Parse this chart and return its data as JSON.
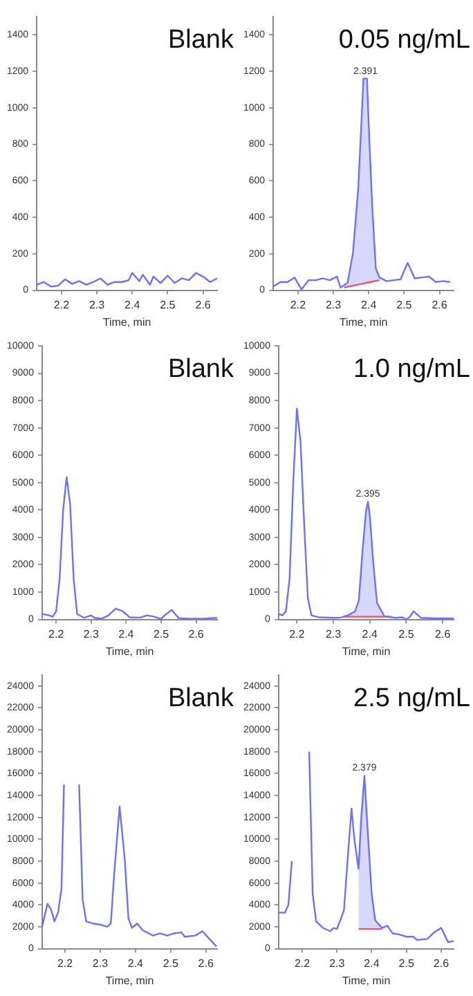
{
  "chart_data": [
    {
      "type": "line",
      "title": "Blank",
      "xlabel": "Time, min",
      "xlim": [
        2.13,
        2.64
      ],
      "xticks": [
        2.2,
        2.3,
        2.4,
        2.5,
        2.6
      ],
      "ylim": [
        0,
        1500
      ],
      "yticks": [
        0,
        200,
        400,
        600,
        800,
        1000,
        1200,
        1400
      ],
      "grid": false,
      "legend": false,
      "marker": "none",
      "series": [
        {
          "color": "#6f6fff",
          "x": [
            2.13,
            2.15,
            2.17,
            2.19,
            2.21,
            2.23,
            2.25,
            2.27,
            2.29,
            2.31,
            2.33,
            2.35,
            2.37,
            2.39,
            2.4,
            2.42,
            2.43,
            2.45,
            2.46,
            2.48,
            2.5,
            2.52,
            2.54,
            2.56,
            2.58,
            2.6,
            2.62,
            2.64
          ],
          "values": [
            30,
            45,
            20,
            25,
            60,
            35,
            50,
            30,
            45,
            65,
            30,
            45,
            45,
            55,
            95,
            50,
            85,
            30,
            75,
            40,
            80,
            40,
            65,
            55,
            95,
            75,
            45,
            65
          ]
        }
      ]
    },
    {
      "type": "line",
      "title": "0.05 ng/mL",
      "xlabel": "Time, min",
      "xlim": [
        2.13,
        2.64
      ],
      "xticks": [
        2.2,
        2.3,
        2.4,
        2.5,
        2.6
      ],
      "ylim": [
        0,
        1500
      ],
      "yticks": [
        0,
        200,
        400,
        600,
        800,
        1000,
        1200,
        1400
      ],
      "grid": false,
      "legend": false,
      "marker": "none",
      "annotations": [
        {
          "text": "2.391",
          "x": 2.391,
          "y": 1160
        }
      ],
      "series": [
        {
          "color": "#6f6fff",
          "x": [
            2.13,
            2.15,
            2.17,
            2.19,
            2.21,
            2.23,
            2.25,
            2.27,
            2.29,
            2.31,
            2.32,
            2.34,
            2.355,
            2.37,
            2.38,
            2.385,
            2.395,
            2.4,
            2.41,
            2.42,
            2.43,
            2.45,
            2.47,
            2.49,
            2.51,
            2.53,
            2.55,
            2.57,
            2.59,
            2.61,
            2.63
          ],
          "values": [
            20,
            45,
            45,
            70,
            5,
            55,
            55,
            65,
            55,
            75,
            15,
            40,
            200,
            550,
            950,
            1160,
            1160,
            900,
            450,
            120,
            70,
            50,
            55,
            60,
            150,
            65,
            70,
            75,
            45,
            50,
            45
          ]
        },
        {
          "color": "#ff5050",
          "x": [
            2.33,
            2.34,
            2.355,
            2.37,
            2.38,
            2.385,
            2.395,
            2.4,
            2.41,
            2.42,
            2.43
          ],
          "values": [
            15,
            19,
            25,
            31,
            35,
            37,
            41,
            43,
            47,
            51,
            55
          ],
          "lower": [
            15,
            19,
            25,
            31,
            35,
            37,
            41,
            43,
            47,
            51,
            55
          ],
          "upper": [
            20,
            40,
            200,
            550,
            950,
            1160,
            1160,
            900,
            450,
            120,
            70
          ]
        }
      ]
    },
    {
      "type": "line",
      "title": "Blank",
      "xlabel": "Time, min",
      "xlim": [
        2.16,
        2.66
      ],
      "xticks": [
        2.2,
        2.3,
        2.4,
        2.5,
        2.6
      ],
      "ylim": [
        0,
        10000
      ],
      "yticks": [
        0,
        1000,
        2000,
        3000,
        4000,
        5000,
        6000,
        7000,
        8000,
        9000,
        10000
      ],
      "grid": false,
      "legend": false,
      "marker": "none",
      "series": [
        {
          "color": "#6f6fff",
          "x": [
            2.16,
            2.18,
            2.19,
            2.2,
            2.21,
            2.22,
            2.23,
            2.24,
            2.25,
            2.26,
            2.28,
            2.3,
            2.31,
            2.33,
            2.35,
            2.37,
            2.39,
            2.41,
            2.44,
            2.46,
            2.48,
            2.5,
            2.51,
            2.53,
            2.55,
            2.58,
            2.62,
            2.66
          ],
          "values": [
            200,
            150,
            100,
            300,
            1500,
            4000,
            5200,
            4200,
            1500,
            200,
            60,
            150,
            60,
            30,
            150,
            400,
            300,
            80,
            70,
            150,
            100,
            20,
            150,
            350,
            50,
            30,
            30,
            60
          ]
        }
      ]
    },
    {
      "type": "line",
      "title": "1.0 ng/mL",
      "xlabel": "Time, min",
      "xlim": [
        2.15,
        2.63
      ],
      "xticks": [
        2.2,
        2.3,
        2.4,
        2.5,
        2.6
      ],
      "ylim": [
        0,
        10000
      ],
      "yticks": [
        0,
        1000,
        2000,
        3000,
        4000,
        5000,
        6000,
        7000,
        8000,
        9000,
        10000
      ],
      "grid": false,
      "legend": false,
      "marker": "none",
      "annotations": [
        {
          "text": "2.395",
          "x": 2.395,
          "y": 4300
        }
      ],
      "series": [
        {
          "color": "#6f6fff",
          "x": [
            2.15,
            2.16,
            2.17,
            2.18,
            2.19,
            2.2,
            2.21,
            2.22,
            2.23,
            2.24,
            2.26,
            2.3,
            2.32,
            2.34,
            2.36,
            2.37,
            2.38,
            2.39,
            2.395,
            2.4,
            2.41,
            2.42,
            2.44,
            2.47,
            2.49,
            2.5,
            2.51,
            2.52,
            2.54,
            2.58,
            2.63
          ],
          "values": [
            200,
            150,
            300,
            1500,
            5000,
            7700,
            6500,
            3500,
            800,
            150,
            80,
            60,
            70,
            150,
            300,
            700,
            2500,
            4000,
            4300,
            3800,
            2000,
            600,
            120,
            60,
            80,
            0,
            100,
            300,
            60,
            40,
            40
          ]
        },
        {
          "color": "#ff5050",
          "x": [
            2.33,
            2.34,
            2.36,
            2.37,
            2.38,
            2.39,
            2.395,
            2.4,
            2.41,
            2.42,
            2.44,
            2.46
          ],
          "values": [
            100,
            100,
            100,
            100,
            100,
            100,
            100,
            100,
            100,
            100,
            100,
            100
          ],
          "lower": [
            100,
            100,
            100,
            100,
            100,
            100,
            100,
            100,
            100,
            100,
            100,
            100
          ],
          "upper": [
            100,
            150,
            300,
            700,
            2500,
            4000,
            4300,
            3800,
            2000,
            600,
            120,
            100
          ]
        }
      ]
    },
    {
      "type": "line",
      "title": "Blank",
      "xlabel": "Time, min",
      "xlim": [
        2.135,
        2.632
      ],
      "xticks": [
        2.2,
        2.3,
        2.4,
        2.5,
        2.6
      ],
      "ylim": [
        0,
        25000
      ],
      "yticks": [
        0,
        2000,
        4000,
        6000,
        8000,
        10000,
        12000,
        14000,
        16000,
        18000,
        20000,
        22000,
        24000
      ],
      "grid": false,
      "legend": false,
      "marker": "none",
      "series": [
        {
          "color": "#6f6fff",
          "x": [
            2.135,
            2.15,
            2.16,
            2.17,
            2.18,
            2.19,
            2.197,
            2.2,
            2.235,
            2.24,
            2.25,
            2.26,
            2.28,
            2.3,
            2.32,
            2.33,
            2.34,
            2.355,
            2.37,
            2.38,
            2.39,
            2.405,
            2.42,
            2.45,
            2.47,
            2.49,
            2.51,
            2.53,
            2.54,
            2.57,
            2.59,
            2.61,
            2.63
          ],
          "values": [
            2000,
            4100,
            3600,
            2500,
            3300,
            5500,
            15000,
            null,
            null,
            15000,
            4500,
            2500,
            2300,
            2200,
            2000,
            2300,
            7000,
            13000,
            8000,
            2800,
            1900,
            2300,
            1700,
            1200,
            1400,
            1200,
            1400,
            1500,
            1100,
            1200,
            1600,
            900,
            200
          ]
        }
      ]
    },
    {
      "type": "line",
      "title": "2.5 ng/mL",
      "xlabel": "Time, min",
      "xlim": [
        2.132,
        2.636
      ],
      "xticks": [
        2.2,
        2.3,
        2.4,
        2.5,
        2.6
      ],
      "ylim": [
        0,
        25000
      ],
      "yticks": [
        0,
        2000,
        4000,
        6000,
        8000,
        10000,
        12000,
        14000,
        16000,
        18000,
        20000,
        22000,
        24000
      ],
      "grid": false,
      "legend": false,
      "marker": "none",
      "annotations": [
        {
          "text": "2.379",
          "x": 2.379,
          "y": 15800
        }
      ],
      "series": [
        {
          "color": "#6f6fff",
          "x": [
            2.132,
            2.15,
            2.16,
            2.17,
            2.18,
            2.218,
            2.22,
            2.23,
            2.24,
            2.26,
            2.28,
            2.29,
            2.3,
            2.32,
            2.335,
            2.342,
            2.35,
            2.362,
            2.37,
            2.379,
            2.39,
            2.4,
            2.41,
            2.43,
            2.445,
            2.46,
            2.48,
            2.5,
            2.52,
            2.53,
            2.56,
            2.58,
            2.6,
            2.62,
            2.636
          ],
          "values": [
            3300,
            3300,
            4000,
            8000,
            null,
            null,
            18000,
            5000,
            2500,
            1900,
            1600,
            1900,
            1800,
            3500,
            10000,
            12800,
            10000,
            7300,
            12000,
            15800,
            10000,
            5000,
            2600,
            1900,
            2100,
            1400,
            1300,
            1100,
            1100,
            800,
            900,
            1500,
            1900,
            600,
            700
          ]
        },
        {
          "color": "#ff5050",
          "x": [
            2.362,
            2.37,
            2.379,
            2.39,
            2.4,
            2.41,
            2.43
          ],
          "values": [
            1800,
            1800,
            1800,
            1800,
            1800,
            1800,
            1800
          ],
          "lower": [
            1800,
            1800,
            1800,
            1800,
            1800,
            1800,
            1800
          ],
          "upper": [
            7300,
            12000,
            15800,
            10000,
            5000,
            2600,
            1900
          ]
        }
      ]
    }
  ]
}
